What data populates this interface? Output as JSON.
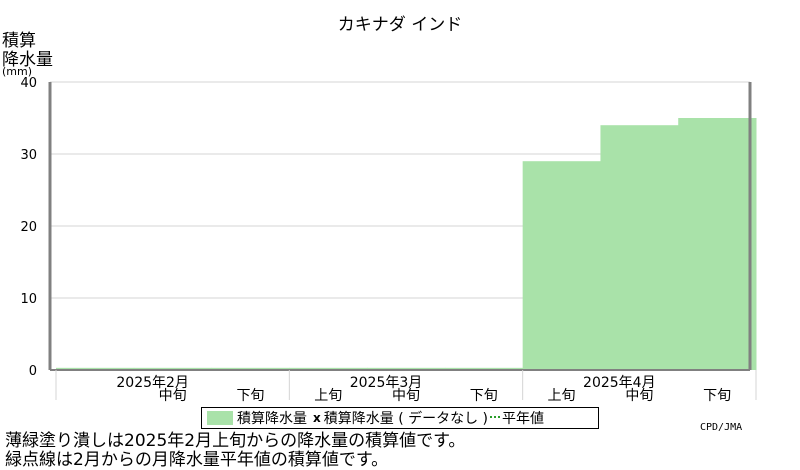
{
  "header": {
    "title": "カキナダ インド",
    "ylabel_line1": "積算",
    "ylabel_line2": "降水量",
    "yunit": "(mm)"
  },
  "legend": {
    "bar_label": "積算降水量",
    "marker_label": "積算降水量 ( データなし ) ",
    "normal_label": "平年値"
  },
  "credit": "CPD/JMA",
  "notes": [
    "薄緑塗り潰しは2025年2月上旬からの降水量の積算値です。",
    "緑点線は2月からの月降水量平年値の積算値です。"
  ],
  "colors": {
    "bar": "#a9e2a9",
    "bar_edge": "#8fd48f",
    "grid": "#d4d4d4",
    "axis": "#808080"
  },
  "chart_data": {
    "type": "area",
    "ylim": [
      0,
      40
    ],
    "yticks": [
      0,
      10,
      20,
      30,
      40
    ],
    "months": [
      "2025年2月",
      "2025年3月",
      "2025年4月"
    ],
    "periods": [
      "上旬",
      "中旬",
      "下旬",
      "上旬",
      "中旬",
      "下旬",
      "上旬",
      "中旬",
      "下旬"
    ],
    "period_labels_shown": [
      "",
      "中旬",
      "下旬",
      "上旬",
      "中旬",
      "下旬",
      "上旬",
      "中旬",
      "下旬"
    ],
    "values": [
      0.3,
      0.3,
      0.3,
      0.3,
      0.3,
      0.3,
      29,
      34,
      35
    ],
    "grid": true,
    "legend_position": "bottom"
  }
}
